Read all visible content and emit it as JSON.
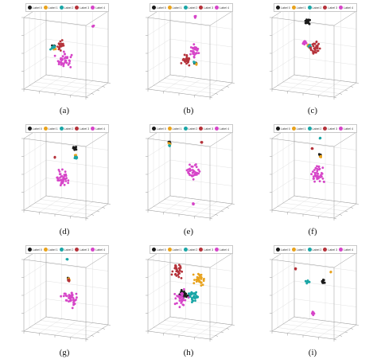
{
  "legend_labels": [
    "Label 0",
    "Label 1",
    "Label 2",
    "Label 3",
    "Label 4"
  ],
  "colors": {
    "label0": "#1a1a1a",
    "label1": "#e8a21c",
    "label2": "#1aa6a6",
    "label3": "#b5323a",
    "label4": "#d645c8",
    "grid": "#d9d9d9",
    "axis": "#9a9a9a"
  },
  "chart_data": [
    {
      "type": "scatter",
      "subplot": "(a)",
      "projection": "3d",
      "grid": true,
      "legend": "top-right",
      "series": [
        {
          "name": "Label 0",
          "clusters": [
            {
              "x": 0.33,
              "y": 0.42,
              "z": 0.55,
              "spread": 0.04
            }
          ]
        },
        {
          "name": "Label 1",
          "clusters": [
            {
              "x": 0.34,
              "y": 0.41,
              "z": 0.53,
              "spread": 0.03
            }
          ]
        },
        {
          "name": "Label 2",
          "clusters": [
            {
              "x": 0.31,
              "y": 0.44,
              "z": 0.52,
              "spread": 0.05
            }
          ]
        },
        {
          "name": "Label 3",
          "clusters": [
            {
              "x": 0.45,
              "y": 0.4,
              "z": 0.58,
              "spread": 0.08
            }
          ]
        },
        {
          "name": "Label 4",
          "clusters": [
            {
              "x": 0.55,
              "y": 0.3,
              "z": 0.4,
              "spread": 0.15
            },
            {
              "x": 0.88,
              "y": 0.65,
              "z": 0.85,
              "spread": 0.02
            }
          ]
        }
      ]
    },
    {
      "type": "scatter",
      "subplot": "(b)",
      "projection": "3d",
      "grid": true,
      "legend": "top-right",
      "series": [
        {
          "name": "Label 0",
          "clusters": [
            {
              "x": 0.62,
              "y": 0.4,
              "z": 0.35,
              "spread": 0.02
            }
          ]
        },
        {
          "name": "Label 1",
          "clusters": [
            {
              "x": 0.63,
              "y": 0.41,
              "z": 0.34,
              "spread": 0.02
            }
          ]
        },
        {
          "name": "Label 2",
          "clusters": [
            {
              "x": 0.61,
              "y": 0.39,
              "z": 0.36,
              "spread": 0.02
            }
          ]
        },
        {
          "name": "Label 3",
          "clusters": [
            {
              "x": 0.48,
              "y": 0.42,
              "z": 0.38,
              "spread": 0.1
            }
          ]
        },
        {
          "name": "Label 4",
          "clusters": [
            {
              "x": 0.6,
              "y": 0.45,
              "z": 0.5,
              "spread": 0.12
            },
            {
              "x": 0.55,
              "y": 0.6,
              "z": 0.95,
              "spread": 0.02
            }
          ]
        }
      ]
    },
    {
      "type": "scatter",
      "subplot": "(c)",
      "projection": "3d",
      "grid": true,
      "legend": "top-right",
      "series": [
        {
          "name": "Label 0",
          "clusters": [
            {
              "x": 0.4,
              "y": 0.5,
              "z": 0.88,
              "spread": 0.06
            }
          ]
        },
        {
          "name": "Label 1",
          "clusters": [
            {
              "x": 0.42,
              "y": 0.48,
              "z": 0.55,
              "spread": 0.03
            }
          ]
        },
        {
          "name": "Label 2",
          "clusters": [
            {
              "x": 0.43,
              "y": 0.49,
              "z": 0.55,
              "spread": 0.03
            }
          ]
        },
        {
          "name": "Label 3",
          "clusters": [
            {
              "x": 0.52,
              "y": 0.52,
              "z": 0.52,
              "spread": 0.12
            }
          ]
        },
        {
          "name": "Label 4",
          "clusters": [
            {
              "x": 0.36,
              "y": 0.46,
              "z": 0.6,
              "spread": 0.05
            }
          ]
        }
      ]
    },
    {
      "type": "scatter",
      "subplot": "(d)",
      "projection": "3d",
      "grid": true,
      "legend": "top-right",
      "series": [
        {
          "name": "Label 0",
          "clusters": [
            {
              "x": 0.62,
              "y": 0.55,
              "z": 0.82,
              "spread": 0.05
            }
          ]
        },
        {
          "name": "Label 1",
          "clusters": [
            {
              "x": 0.63,
              "y": 0.55,
              "z": 0.72,
              "spread": 0.02
            }
          ]
        },
        {
          "name": "Label 2",
          "clusters": [
            {
              "x": 0.64,
              "y": 0.54,
              "z": 0.7,
              "spread": 0.03
            }
          ]
        },
        {
          "name": "Label 3",
          "clusters": [
            {
              "x": 0.3,
              "y": 0.55,
              "z": 0.66,
              "spread": 0.01
            }
          ]
        },
        {
          "name": "Label 4",
          "clusters": [
            {
              "x": 0.45,
              "y": 0.45,
              "z": 0.4,
              "spread": 0.15
            }
          ]
        }
      ]
    },
    {
      "type": "scatter",
      "subplot": "(e)",
      "projection": "3d",
      "grid": true,
      "legend": "top-right",
      "series": [
        {
          "name": "Label 0",
          "clusters": [
            {
              "x": 0.15,
              "y": 0.55,
              "z": 0.85,
              "spread": 0.02
            }
          ]
        },
        {
          "name": "Label 1",
          "clusters": [
            {
              "x": 0.15,
              "y": 0.55,
              "z": 0.83,
              "spread": 0.02
            }
          ]
        },
        {
          "name": "Label 2",
          "clusters": [
            {
              "x": 0.16,
              "y": 0.54,
              "z": 0.81,
              "spread": 0.02
            }
          ]
        },
        {
          "name": "Label 3",
          "clusters": [
            {
              "x": 0.65,
              "y": 0.6,
              "z": 0.9,
              "spread": 0.01
            }
          ]
        },
        {
          "name": "Label 4",
          "clusters": [
            {
              "x": 0.55,
              "y": 0.5,
              "z": 0.5,
              "spread": 0.14
            },
            {
              "x": 0.55,
              "y": 0.5,
              "z": 0.05,
              "spread": 0.01
            }
          ]
        }
      ]
    },
    {
      "type": "scatter",
      "subplot": "(f)",
      "projection": "3d",
      "grid": true,
      "legend": "top-right",
      "series": [
        {
          "name": "Label 0",
          "clusters": [
            {
              "x": 0.58,
              "y": 0.55,
              "z": 0.72,
              "spread": 0.03
            }
          ]
        },
        {
          "name": "Label 1",
          "clusters": [
            {
              "x": 0.58,
              "y": 0.56,
              "z": 0.7,
              "spread": 0.02
            }
          ]
        },
        {
          "name": "Label 2",
          "clusters": [
            {
              "x": 0.58,
              "y": 0.55,
              "z": 0.96,
              "spread": 0.01
            }
          ]
        },
        {
          "name": "Label 3",
          "clusters": [
            {
              "x": 0.45,
              "y": 0.55,
              "z": 0.8,
              "spread": 0.01
            }
          ]
        },
        {
          "name": "Label 4",
          "clusters": [
            {
              "x": 0.55,
              "y": 0.55,
              "z": 0.45,
              "spread": 0.15
            }
          ]
        }
      ]
    },
    {
      "type": "scatter",
      "subplot": "(g)",
      "projection": "3d",
      "grid": true,
      "legend": "top-right",
      "series": [
        {
          "name": "Label 0",
          "clusters": [
            {
              "x": 0.52,
              "y": 0.55,
              "z": 0.68,
              "spread": 0.02
            }
          ]
        },
        {
          "name": "Label 1",
          "clusters": [
            {
              "x": 0.52,
              "y": 0.56,
              "z": 0.67,
              "spread": 0.02
            }
          ]
        },
        {
          "name": "Label 2",
          "clusters": [
            {
              "x": 0.5,
              "y": 0.55,
              "z": 0.95,
              "spread": 0.01
            }
          ]
        },
        {
          "name": "Label 3",
          "clusters": [
            {
              "x": 0.53,
              "y": 0.55,
              "z": 0.66,
              "spread": 0.02
            }
          ]
        },
        {
          "name": "Label 4",
          "clusters": [
            {
              "x": 0.55,
              "y": 0.55,
              "z": 0.42,
              "spread": 0.16
            }
          ]
        }
      ]
    },
    {
      "type": "scatter",
      "subplot": "(h)",
      "projection": "3d",
      "grid": true,
      "legend": "top-right",
      "series": [
        {
          "name": "Label 0",
          "clusters": [
            {
              "x": 0.4,
              "y": 0.5,
              "z": 0.45,
              "spread": 0.1
            }
          ]
        },
        {
          "name": "Label 1",
          "clusters": [
            {
              "x": 0.65,
              "y": 0.5,
              "z": 0.7,
              "spread": 0.12
            }
          ]
        },
        {
          "name": "Label 2",
          "clusters": [
            {
              "x": 0.55,
              "y": 0.5,
              "z": 0.45,
              "spread": 0.12
            }
          ]
        },
        {
          "name": "Label 3",
          "clusters": [
            {
              "x": 0.3,
              "y": 0.5,
              "z": 0.78,
              "spread": 0.12
            }
          ]
        },
        {
          "name": "Label 4",
          "clusters": [
            {
              "x": 0.35,
              "y": 0.5,
              "z": 0.4,
              "spread": 0.14
            }
          ]
        }
      ]
    },
    {
      "type": "scatter",
      "subplot": "(i)",
      "projection": "3d",
      "grid": true,
      "legend": "top-right",
      "series": [
        {
          "name": "Label 0",
          "clusters": [
            {
              "x": 0.62,
              "y": 0.55,
              "z": 0.65,
              "spread": 0.04
            }
          ]
        },
        {
          "name": "Label 1",
          "clusters": [
            {
              "x": 0.75,
              "y": 0.55,
              "z": 0.8,
              "spread": 0.01
            }
          ]
        },
        {
          "name": "Label 2",
          "clusters": [
            {
              "x": 0.38,
              "y": 0.55,
              "z": 0.62,
              "spread": 0.04
            }
          ]
        },
        {
          "name": "Label 3",
          "clusters": [
            {
              "x": 0.18,
              "y": 0.55,
              "z": 0.78,
              "spread": 0.01
            }
          ]
        },
        {
          "name": "Label 4",
          "clusters": [
            {
              "x": 0.48,
              "y": 0.5,
              "z": 0.2,
              "spread": 0.03
            }
          ]
        }
      ]
    }
  ]
}
